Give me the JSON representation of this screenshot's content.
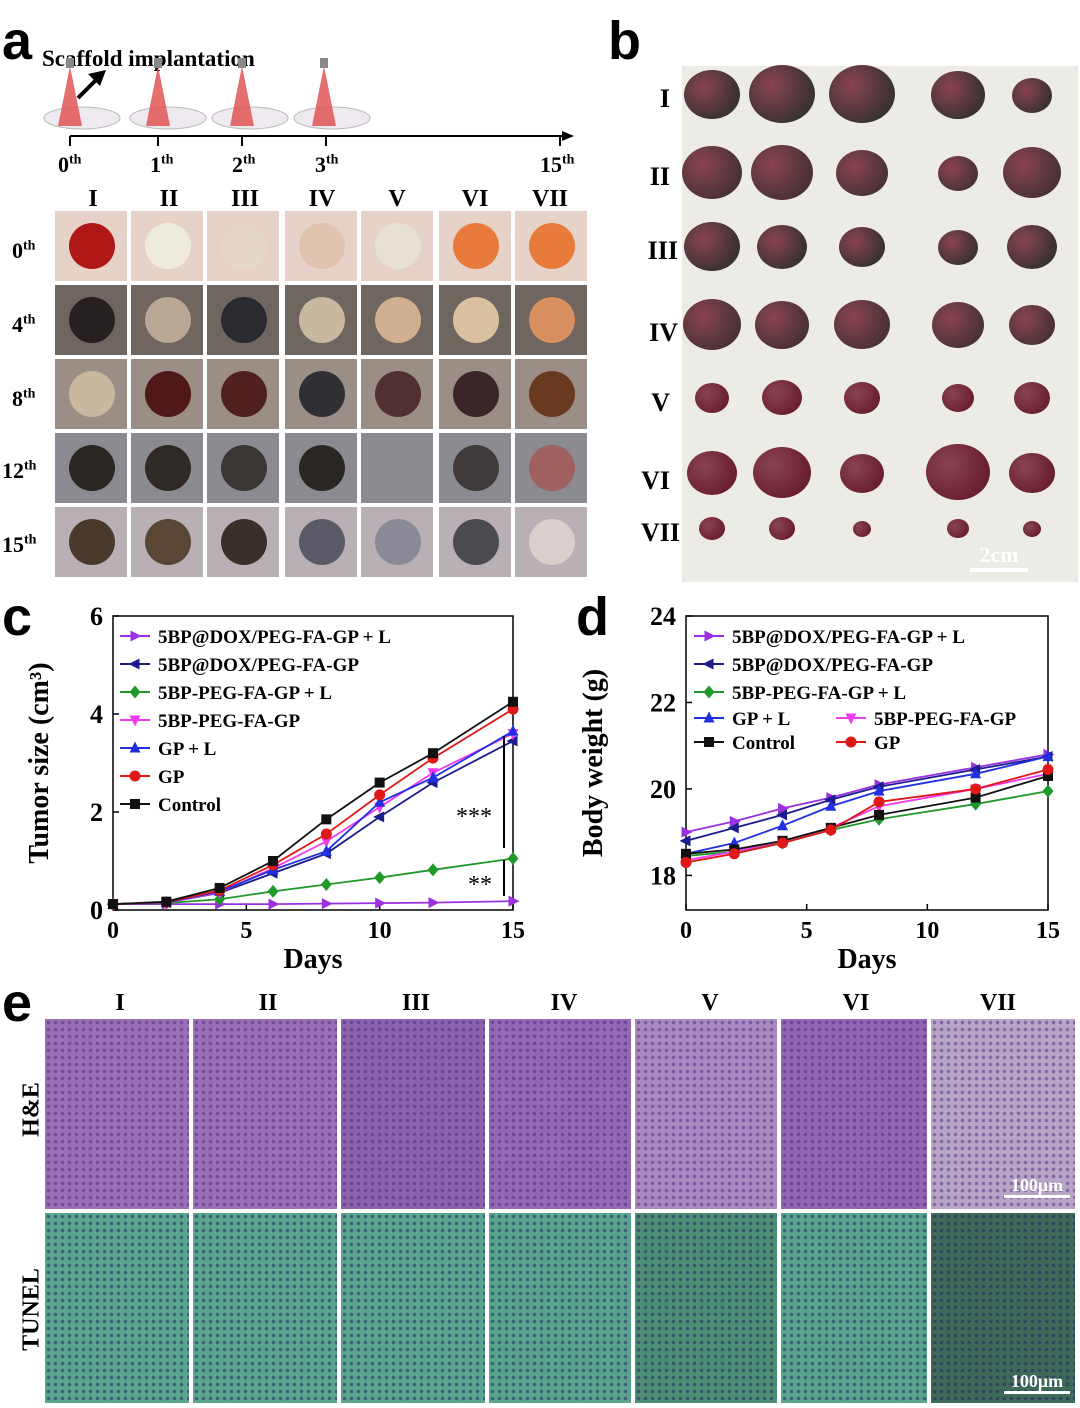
{
  "panels": {
    "a": "a",
    "b": "b",
    "c": "c",
    "d": "d",
    "e": "e"
  },
  "panel_a": {
    "scaffold_label": "Scaffold implantation",
    "timeline_ticks": [
      "0",
      "1",
      "2",
      "3",
      "15"
    ],
    "timeline_suffix": "th",
    "groups": [
      "I",
      "II",
      "III",
      "IV",
      "V",
      "VI",
      "VII"
    ],
    "day_rows": [
      "0",
      "4",
      "8",
      "12",
      "15"
    ],
    "row_suffix": "th"
  },
  "panel_b": {
    "groups": [
      "I",
      "II",
      "III",
      "IV",
      "V",
      "VI",
      "VII"
    ],
    "scale_bar": "2cm"
  },
  "panel_e": {
    "groups": [
      "I",
      "II",
      "III",
      "IV",
      "V",
      "VI",
      "VII"
    ],
    "rows": [
      "H&E",
      "TUNEL"
    ],
    "scale_bar": "100μm"
  },
  "chart_data": [
    {
      "type": "line",
      "panel": "c",
      "xlabel": "Days",
      "ylabel": "Tumor size (cm³)",
      "xlim": [
        0,
        15
      ],
      "ylim": [
        0,
        6
      ],
      "xticks": [
        0,
        5,
        10,
        15
      ],
      "yticks": [
        0,
        2,
        4,
        6
      ],
      "x": [
        0,
        2,
        4,
        6,
        8,
        10,
        12,
        15
      ],
      "annotations": [
        "***",
        "**"
      ],
      "series": [
        {
          "name": "5BP@DOX/PEG-FA-GP + L",
          "color": "#9b30e0",
          "marker": "tri-right",
          "values": [
            0.12,
            0.12,
            0.12,
            0.12,
            0.13,
            0.14,
            0.15,
            0.18
          ]
        },
        {
          "name": "5BP@DOX/PEG-FA-GP",
          "color": "#1c1c8c",
          "marker": "tri-left",
          "values": [
            0.12,
            0.15,
            0.35,
            0.75,
            1.15,
            1.9,
            2.6,
            3.45
          ]
        },
        {
          "name": "5BP-PEG-FA-GP + L",
          "color": "#1f9a2a",
          "marker": "diamond",
          "values": [
            0.12,
            0.14,
            0.22,
            0.38,
            0.52,
            0.66,
            0.82,
            1.05
          ]
        },
        {
          "name": "5BP-PEG-FA-GP",
          "color": "#f03cf0",
          "marker": "tri-down",
          "values": [
            0.12,
            0.15,
            0.36,
            0.85,
            1.4,
            2.1,
            2.8,
            3.6
          ]
        },
        {
          "name": "GP + L",
          "color": "#2030e0",
          "marker": "tri-up",
          "values": [
            0.12,
            0.15,
            0.38,
            0.82,
            1.2,
            2.2,
            2.7,
            3.65
          ]
        },
        {
          "name": "GP",
          "color": "#e01818",
          "marker": "circle",
          "values": [
            0.12,
            0.16,
            0.4,
            0.92,
            1.55,
            2.35,
            3.1,
            4.1
          ]
        },
        {
          "name": "Control",
          "color": "#111111",
          "marker": "square",
          "values": [
            0.12,
            0.17,
            0.45,
            1.0,
            1.85,
            2.6,
            3.2,
            4.25
          ]
        }
      ]
    },
    {
      "type": "line",
      "panel": "d",
      "xlabel": "Days",
      "ylabel": "Body weight (g)",
      "xlim": [
        0,
        15
      ],
      "ylim": [
        17.2,
        24
      ],
      "xticks": [
        0,
        5,
        10,
        15
      ],
      "yticks": [
        18,
        20,
        22,
        24
      ],
      "x": [
        0,
        2,
        4,
        6,
        8,
        12,
        15
      ],
      "series": [
        {
          "name": "5BP@DOX/PEG-FA-GP + L",
          "color": "#9b30e0",
          "marker": "tri-right",
          "values": [
            19.0,
            19.25,
            19.55,
            19.8,
            20.1,
            20.5,
            20.8
          ]
        },
        {
          "name": "5BP@DOX/PEG-FA-GP",
          "color": "#1c1c8c",
          "marker": "tri-left",
          "values": [
            18.8,
            19.1,
            19.4,
            19.75,
            20.05,
            20.45,
            20.75
          ]
        },
        {
          "name": "5BP-PEG-FA-GP + L",
          "color": "#1f9a2a",
          "marker": "diamond",
          "values": [
            18.45,
            18.55,
            18.75,
            19.05,
            19.3,
            19.65,
            19.95
          ]
        },
        {
          "name": "GP + L",
          "color": "#2030e0",
          "marker": "tri-up",
          "values": [
            18.5,
            18.75,
            19.15,
            19.6,
            19.95,
            20.35,
            20.75
          ]
        },
        {
          "name": "5BP-PEG-FA-GP",
          "color": "#f03cf0",
          "marker": "tri-down",
          "values": [
            18.35,
            18.55,
            18.8,
            19.1,
            19.6,
            20.0,
            20.35
          ]
        },
        {
          "name": "Control",
          "color": "#111111",
          "marker": "square",
          "values": [
            18.5,
            18.6,
            18.8,
            19.1,
            19.4,
            19.8,
            20.3
          ]
        },
        {
          "name": "GP",
          "color": "#e01818",
          "marker": "circle",
          "values": [
            18.3,
            18.5,
            18.75,
            19.05,
            19.7,
            20.0,
            20.45
          ]
        }
      ]
    }
  ]
}
